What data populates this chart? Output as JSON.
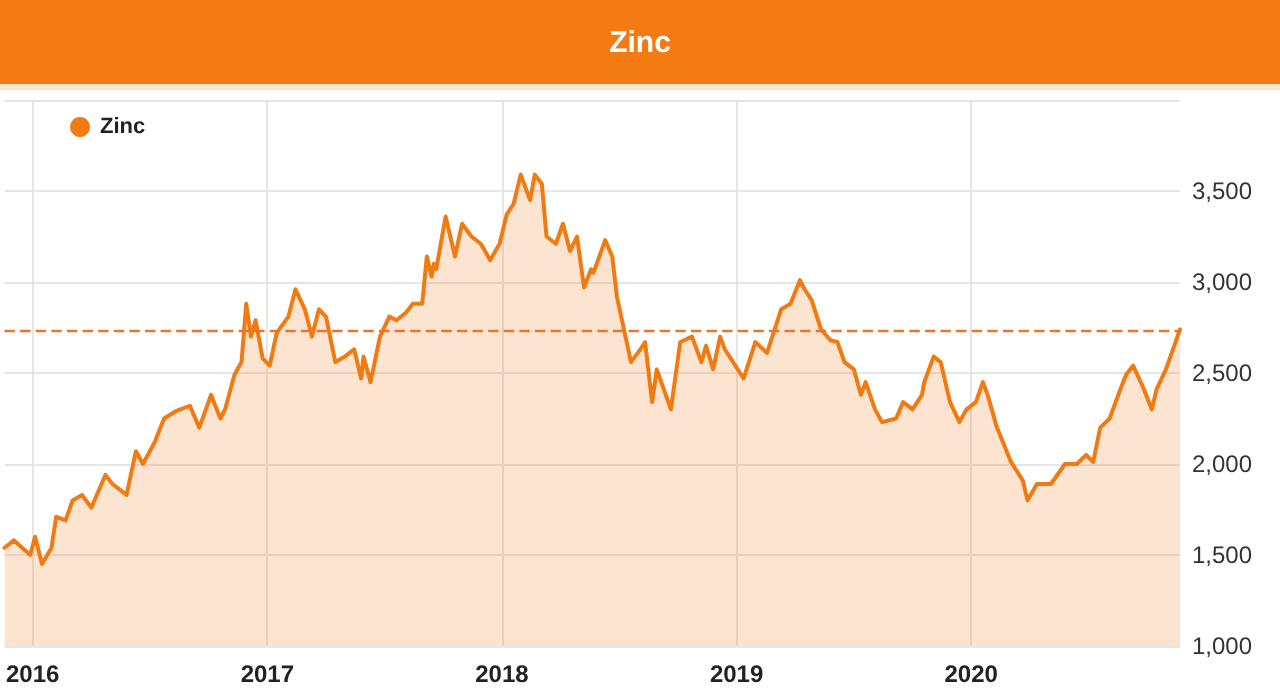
{
  "chart_data": {
    "type": "area",
    "title": "Zinc",
    "series": [
      {
        "name": "Zinc",
        "color": "#f27a12",
        "x": [
          2015.88,
          2015.92,
          2015.99,
          2016.01,
          2016.04,
          2016.08,
          2016.1,
          2016.14,
          2016.17,
          2016.21,
          2016.25,
          2016.27,
          2016.31,
          2016.34,
          2016.4,
          2016.44,
          2016.47,
          2016.52,
          2016.56,
          2016.61,
          2016.67,
          2016.71,
          2016.76,
          2016.8,
          2016.82,
          2016.86,
          2016.89,
          2016.91,
          2016.93,
          2016.95,
          2016.98,
          2017.01,
          2017.04,
          2017.09,
          2017.12,
          2017.16,
          2017.19,
          2017.22,
          2017.25,
          2017.29,
          2017.33,
          2017.37,
          2017.4,
          2017.41,
          2017.44,
          2017.48,
          2017.52,
          2017.55,
          2017.59,
          2017.62,
          2017.66,
          2017.68,
          2017.7,
          2017.71,
          2017.72,
          2017.76,
          2017.8,
          2017.83,
          2017.87,
          2017.91,
          2017.95,
          2017.99,
          2018.02,
          2018.05,
          2018.08,
          2018.12,
          2018.14,
          2018.17,
          2018.19,
          2018.23,
          2018.26,
          2018.29,
          2018.32,
          2018.35,
          2018.38,
          2018.39,
          2018.44,
          2018.47,
          2018.49,
          2018.55,
          2018.59,
          2018.61,
          2018.64,
          2018.66,
          2018.72,
          2018.76,
          2018.81,
          2018.85,
          2018.87,
          2018.9,
          2018.93,
          2018.95,
          2019.03,
          2019.08,
          2019.13,
          2019.19,
          2019.23,
          2019.27,
          2019.29,
          2019.32,
          2019.36,
          2019.4,
          2019.43,
          2019.46,
          2019.5,
          2019.53,
          2019.55,
          2019.59,
          2019.62,
          2019.68,
          2019.71,
          2019.75,
          2019.79,
          2019.8,
          2019.84,
          2019.87,
          2019.91,
          2019.95,
          2019.98,
          2020.02,
          2020.05,
          2020.07,
          2020.11,
          2020.17,
          2020.22,
          2020.24,
          2020.28,
          2020.34,
          2020.4,
          2020.45,
          2020.49,
          2020.52,
          2020.55,
          2020.59,
          2020.63,
          2020.66,
          2020.69,
          2020.73,
          2020.77,
          2020.79,
          2020.83,
          2020.86,
          2020.89
        ],
        "values": [
          1540,
          1580,
          1500,
          1600,
          1450,
          1540,
          1710,
          1690,
          1800,
          1830,
          1760,
          1820,
          1940,
          1890,
          1830,
          2070,
          2000,
          2120,
          2250,
          2290,
          2320,
          2200,
          2380,
          2250,
          2300,
          2490,
          2560,
          2880,
          2700,
          2790,
          2580,
          2540,
          2720,
          2810,
          2960,
          2850,
          2700,
          2850,
          2810,
          2560,
          2590,
          2630,
          2470,
          2590,
          2450,
          2700,
          2810,
          2790,
          2830,
          2880,
          2880,
          3140,
          3030,
          3100,
          3070,
          3360,
          3140,
          3320,
          3250,
          3210,
          3120,
          3210,
          3370,
          3430,
          3590,
          3450,
          3590,
          3540,
          3250,
          3210,
          3320,
          3170,
          3250,
          2970,
          3070,
          3050,
          3230,
          3140,
          2920,
          2560,
          2630,
          2670,
          2340,
          2520,
          2300,
          2670,
          2700,
          2560,
          2650,
          2520,
          2700,
          2630,
          2470,
          2670,
          2610,
          2850,
          2880,
          3010,
          2960,
          2900,
          2740,
          2680,
          2670,
          2560,
          2520,
          2380,
          2450,
          2300,
          2230,
          2250,
          2340,
          2300,
          2380,
          2450,
          2590,
          2560,
          2340,
          2230,
          2300,
          2340,
          2450,
          2380,
          2200,
          2010,
          1910,
          1800,
          1890,
          1890,
          2000,
          2000,
          2050,
          2010,
          2200,
          2250,
          2390,
          2490,
          2540,
          2430,
          2300,
          2410,
          2520,
          2630,
          2740
        ]
      }
    ],
    "xlim": [
      2015.88,
      2020.89
    ],
    "xticks": [
      2016,
      2017,
      2018,
      2019,
      2020
    ],
    "ylim": [
      1000,
      4000
    ],
    "yticks": [
      {
        "value": 1000,
        "label": "1,000"
      },
      {
        "value": 1500,
        "label": "1,500"
      },
      {
        "value": 2000,
        "label": "2,000"
      },
      {
        "value": 2500,
        "label": "2,500"
      },
      {
        "value": 3000,
        "label": "3,000"
      },
      {
        "value": 3500,
        "label": "3,500"
      },
      {
        "value": 4000,
        "label": null
      }
    ],
    "ref_lines": [
      {
        "axis": "y",
        "value": 2730,
        "color": "#e8772a",
        "line_style": "dashed"
      }
    ],
    "grid": true,
    "legend": "top left",
    "marker": "none",
    "line_style": "solid"
  }
}
